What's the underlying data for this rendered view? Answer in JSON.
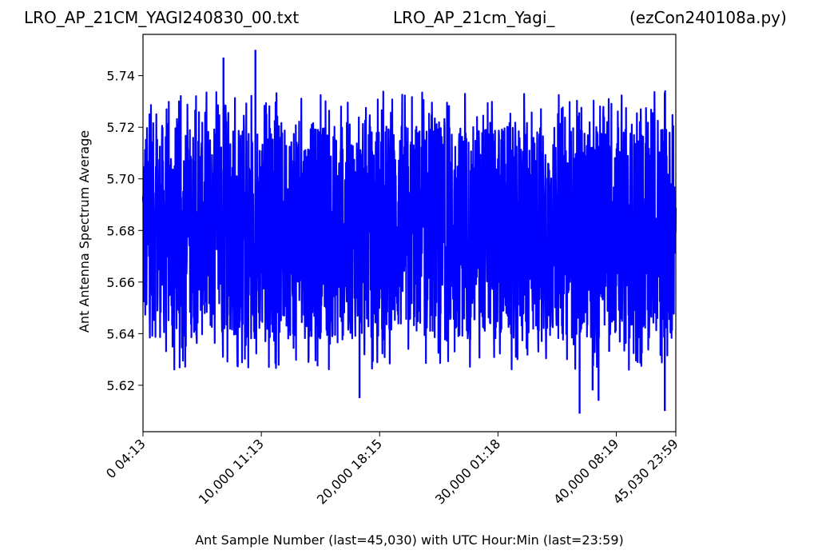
{
  "titles": {
    "left": "LRO_AP_21CM_YAGI240830_00.txt",
    "center": "LRO_AP_21cm_Yagi_",
    "right": "(ezCon240108a.py)"
  },
  "chart_data": {
    "type": "line",
    "xlabel": "Ant Sample Number (last=45,030) with UTC Hour:Min (last=23:59)",
    "ylabel": "Ant Antenna Spectrum Average",
    "xlim": [
      0,
      45030
    ],
    "ylim": [
      5.602,
      5.756
    ],
    "grid": false,
    "x_ticks": [
      {
        "value": 0,
        "label": "0  04:13"
      },
      {
        "value": 10000,
        "label": "10,000  11:13"
      },
      {
        "value": 20000,
        "label": "20,000  18:15"
      },
      {
        "value": 30000,
        "label": "30,000  01:18"
      },
      {
        "value": 40000,
        "label": "40,000  08:19"
      },
      {
        "value": 45030,
        "label": "45,030  23:59"
      }
    ],
    "y_ticks": [
      "5.62",
      "5.64",
      "5.66",
      "5.68",
      "5.70",
      "5.72",
      "5.74"
    ],
    "series": [
      {
        "color": "#0000ff",
        "sample_count": 45031,
        "mean": 5.68,
        "typical_min": 5.638,
        "typical_max": 5.722,
        "notable_points": [
          {
            "x": 6800,
            "y": 5.747
          },
          {
            "x": 9500,
            "y": 5.75
          },
          {
            "x": 18300,
            "y": 5.615
          },
          {
            "x": 36900,
            "y": 5.609
          },
          {
            "x": 38000,
            "y": 5.618
          },
          {
            "x": 38500,
            "y": 5.614
          },
          {
            "x": 39400,
            "y": 5.633
          },
          {
            "x": 44100,
            "y": 5.61
          }
        ]
      }
    ]
  }
}
